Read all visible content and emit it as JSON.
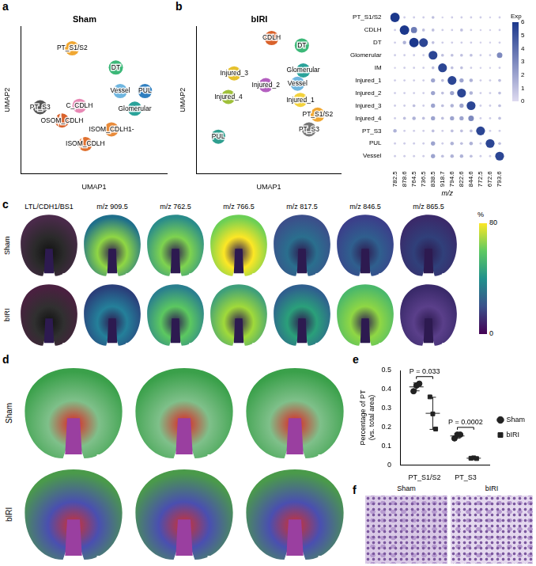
{
  "panel_labels": [
    "a",
    "b",
    "c",
    "d",
    "e",
    "f"
  ],
  "chart_data": [
    {
      "panel": "a",
      "type": "scatter",
      "title": "Sham",
      "x_label": "UMAP1",
      "y_label": "UMAP2",
      "tick_labels": false,
      "grid": false,
      "xlim": [
        0,
        10
      ],
      "ylim": [
        0,
        10
      ],
      "clusters": [
        {
          "name": "PT_S1/S2",
          "color": "#f0a732",
          "x": 3.5,
          "y": 8.5
        },
        {
          "name": "DT",
          "color": "#3cb878",
          "x": 6.5,
          "y": 7.2
        },
        {
          "name": "PUL",
          "color": "#2f7fc0",
          "x": 8.5,
          "y": 5.6
        },
        {
          "name": "Vessel",
          "color": "#6fb6e0",
          "x": 6.8,
          "y": 5.6
        },
        {
          "name": "Glomerular",
          "color": "#2aa39a",
          "x": 7.8,
          "y": 4.4
        },
        {
          "name": "PT_S3",
          "color": "#555555",
          "x": 1.3,
          "y": 4.5
        },
        {
          "name": "C_CDLH",
          "color": "#e889b5",
          "x": 4.0,
          "y": 4.6
        },
        {
          "name": "OSOM_CDLH",
          "color": "#d9622b",
          "x": 2.8,
          "y": 3.6
        },
        {
          "name": "ISOM_CDLH1-",
          "color": "#e98b3a",
          "x": 6.2,
          "y": 3.0
        },
        {
          "name": "ISOM_CDLH",
          "color": "#e0702e",
          "x": 4.4,
          "y": 2.0
        }
      ]
    },
    {
      "panel": "b",
      "type": "scatter",
      "title": "bIRI",
      "x_label": "UMAP1",
      "y_label": "UMAP2",
      "tick_labels": false,
      "grid": false,
      "xlim": [
        0,
        10
      ],
      "ylim": [
        0,
        10
      ],
      "clusters": [
        {
          "name": "CDLH",
          "color": "#d9622b",
          "x": 5.2,
          "y": 9.2
        },
        {
          "name": "DT",
          "color": "#3cb878",
          "x": 7.3,
          "y": 8.7
        },
        {
          "name": "Injured_3",
          "color": "#e6c12e",
          "x": 2.6,
          "y": 6.8
        },
        {
          "name": "Injured_2",
          "color": "#b45fc0",
          "x": 4.8,
          "y": 6.0
        },
        {
          "name": "Injured_4",
          "color": "#9fc03a",
          "x": 2.2,
          "y": 5.2
        },
        {
          "name": "Glomerular",
          "color": "#2aa39a",
          "x": 7.4,
          "y": 7.0
        },
        {
          "name": "Vessel",
          "color": "#6fb6e0",
          "x": 7.0,
          "y": 6.1
        },
        {
          "name": "Injured_1",
          "color": "#f3d23c",
          "x": 7.2,
          "y": 5.0
        },
        {
          "name": "PT_S1/S2",
          "color": "#f0a732",
          "x": 8.4,
          "y": 4.0
        },
        {
          "name": "PT_S3",
          "color": "#777777",
          "x": 7.8,
          "y": 3.0
        },
        {
          "name": "PUL",
          "color": "#2f9f8f",
          "x": 1.5,
          "y": 2.5
        }
      ]
    },
    {
      "panel": "b",
      "type": "bubble",
      "x_label": "m/z",
      "categories_x": [
        "782.5",
        "878.6",
        "764.5",
        "736.5",
        "838.5",
        "918.7",
        "794.6",
        "822.6",
        "844.6",
        "772.5",
        "672.6",
        "793.6"
      ],
      "categories_y": [
        "PT_S1/S2",
        "CDLH",
        "DT",
        "Glomerular",
        "IM",
        "Injured_1",
        "Injured_2",
        "Injured_3",
        "Injured_4",
        "PT_S3",
        "PUL",
        "Vessel"
      ],
      "values": [
        [
          6,
          0.5,
          0.5,
          0.5,
          1,
          0.3,
          0.5,
          0.5,
          0.5,
          0.5,
          0.3,
          0.5
        ],
        [
          0.5,
          6,
          3.5,
          1,
          1,
          0.5,
          0.5,
          1,
          0.5,
          0.3,
          0.3,
          0.5
        ],
        [
          0.5,
          1.5,
          6,
          5.5,
          1,
          0.5,
          0.5,
          0.5,
          0.5,
          0.3,
          0.3,
          0.5
        ],
        [
          0.5,
          0.5,
          0.5,
          0.5,
          5.5,
          1,
          1,
          1,
          1,
          0.5,
          0.5,
          3
        ],
        [
          0.3,
          0.5,
          0.5,
          0.5,
          1,
          5.5,
          1,
          1,
          0.5,
          0.3,
          0.3,
          0.5
        ],
        [
          0.5,
          0.5,
          0.5,
          0.5,
          2,
          1,
          5.5,
          2,
          1.5,
          0.5,
          0.5,
          1
        ],
        [
          0.5,
          0.5,
          0.5,
          0.5,
          2,
          1,
          2,
          5.5,
          1.5,
          0.5,
          0.5,
          1
        ],
        [
          0.5,
          0.5,
          1,
          0.5,
          2,
          1,
          1.5,
          2,
          5.5,
          0.5,
          0.5,
          1
        ],
        [
          0.5,
          1,
          1.5,
          1,
          2,
          1,
          2,
          2,
          3,
          0.5,
          0.5,
          1
        ],
        [
          1.5,
          0.5,
          0.5,
          0.5,
          1,
          0.5,
          1,
          1,
          1,
          5.5,
          0.5,
          0.5
        ],
        [
          0.5,
          0.5,
          0.5,
          0.5,
          2,
          0.5,
          1.5,
          1,
          1.5,
          0.5,
          5.5,
          1
        ],
        [
          0.5,
          0.5,
          0.5,
          0.5,
          2,
          1,
          1.5,
          1.5,
          1,
          0.5,
          0.5,
          5.5
        ]
      ],
      "colorbar": {
        "label": "Exp",
        "range": [
          0,
          6
        ],
        "ticks": [
          0,
          1,
          2,
          3,
          4,
          5,
          6
        ]
      }
    },
    {
      "panel": "e",
      "type": "scatter",
      "categories": [
        "PT_S1/S2",
        "PT_S3"
      ],
      "y_label": [
        "Percentage of PT",
        "(vs. total area)"
      ],
      "ylim": [
        0,
        0.5
      ],
      "yticks": [
        0,
        0.1,
        0.2,
        0.3,
        0.4,
        0.5
      ],
      "grid": false,
      "legend": "right",
      "series": [
        {
          "name": "Sham",
          "color": "#222222",
          "marker": "circle",
          "values": [
            [
              0.39,
              0.42,
              0.43
            ],
            [
              0.14,
              0.16,
              0.16
            ]
          ],
          "mean": [
            0.413,
            0.153
          ],
          "sd": [
            0.021,
            0.012
          ]
        },
        {
          "name": "bIRI",
          "color": "#222222",
          "marker": "square",
          "values": [
            [
              0.36,
              0.27,
              0.19
            ],
            [
              0.035,
              0.037,
              0.033
            ]
          ],
          "mean": [
            0.273,
            0.035
          ],
          "sd": [
            0.085,
            0.002
          ]
        }
      ],
      "annotations": [
        {
          "category": "PT_S1/S2",
          "text": "P = 0.033"
        },
        {
          "category": "PT_S3",
          "text": "P = 0.0002"
        }
      ]
    }
  ],
  "image_panels": {
    "c": {
      "columns": [
        "LTL/CDH1/BS1",
        "m/z 909.5",
        "m/z 762.5",
        "m/z 766.5",
        "m/z 817.5",
        "m/z 846.5",
        "m/z 865.5"
      ],
      "rows": [
        "Sham",
        "bIRI"
      ],
      "colorbar": {
        "label": "%",
        "range": [
          0,
          80
        ],
        "ticks": [
          0,
          80
        ]
      }
    },
    "d": {
      "rows": [
        "Sham",
        "bIRI"
      ],
      "count": 3
    },
    "f": {
      "columns": [
        "Sham",
        "bIRI"
      ]
    }
  }
}
